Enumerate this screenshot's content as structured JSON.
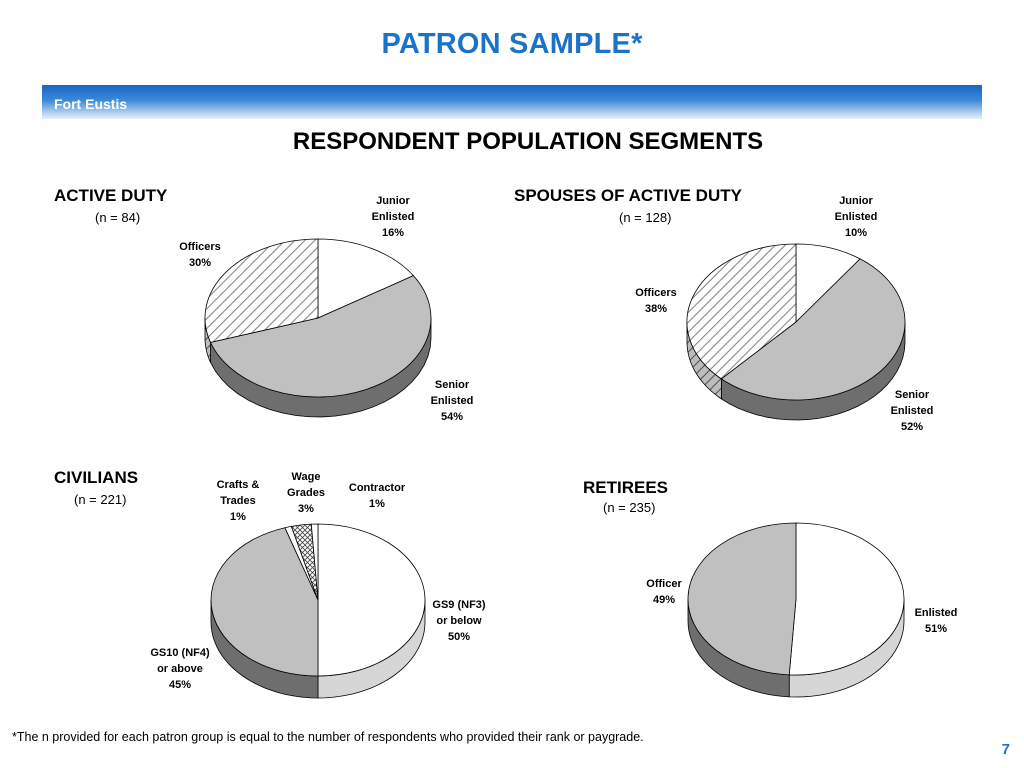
{
  "title": "PATRON SAMPLE*",
  "banner": "Fort Eustis",
  "subtitle": "RESPONDENT POPULATION SEGMENTS",
  "footnote": "*The n provided for each patron group is equal to the number of respondents who provided their rank or paygrade.",
  "page_number": "7",
  "chart_data": [
    {
      "type": "pie",
      "title": "ACTIVE DUTY",
      "n_label": "(n = 84)",
      "slices": [
        {
          "label": [
            "Junior",
            "Enlisted",
            "16%"
          ],
          "value": 16,
          "fill": "white"
        },
        {
          "label": [
            "Senior",
            "Enlisted",
            "54%"
          ],
          "value": 54,
          "fill": "gray"
        },
        {
          "label": [
            "Officers",
            "30%"
          ],
          "value": 30,
          "fill": "hatch"
        }
      ]
    },
    {
      "type": "pie",
      "title": "SPOUSES OF ACTIVE DUTY",
      "n_label": "(n = 128)",
      "slices": [
        {
          "label": [
            "Junior",
            "Enlisted",
            "10%"
          ],
          "value": 10,
          "fill": "white"
        },
        {
          "label": [
            "Senior",
            "Enlisted",
            "52%"
          ],
          "value": 52,
          "fill": "gray"
        },
        {
          "label": [
            "Officers",
            "38%"
          ],
          "value": 38,
          "fill": "hatch"
        }
      ]
    },
    {
      "type": "pie",
      "title": "CIVILIANS",
      "n_label": "(n = 221)",
      "slices": [
        {
          "label": [
            "GS9 (NF3)",
            "or below",
            "50%"
          ],
          "value": 50,
          "fill": "white"
        },
        {
          "label": [
            "GS10 (NF4)",
            "or above",
            "45%"
          ],
          "value": 45,
          "fill": "gray"
        },
        {
          "label": [
            "Crafts &",
            "Trades",
            "1%"
          ],
          "value": 1,
          "fill": "white"
        },
        {
          "label": [
            "Wage",
            "Grades",
            "3%"
          ],
          "value": 3,
          "fill": "cross"
        },
        {
          "label": [
            "Contractor",
            "1%"
          ],
          "value": 1,
          "fill": "white"
        }
      ]
    },
    {
      "type": "pie",
      "title": "RETIREES",
      "n_label": "(n = 235)",
      "slices": [
        {
          "label": [
            "Enlisted",
            "51%"
          ],
          "value": 51,
          "fill": "white"
        },
        {
          "label": [
            "Officer",
            "49%"
          ],
          "value": 49,
          "fill": "gray"
        }
      ]
    }
  ]
}
